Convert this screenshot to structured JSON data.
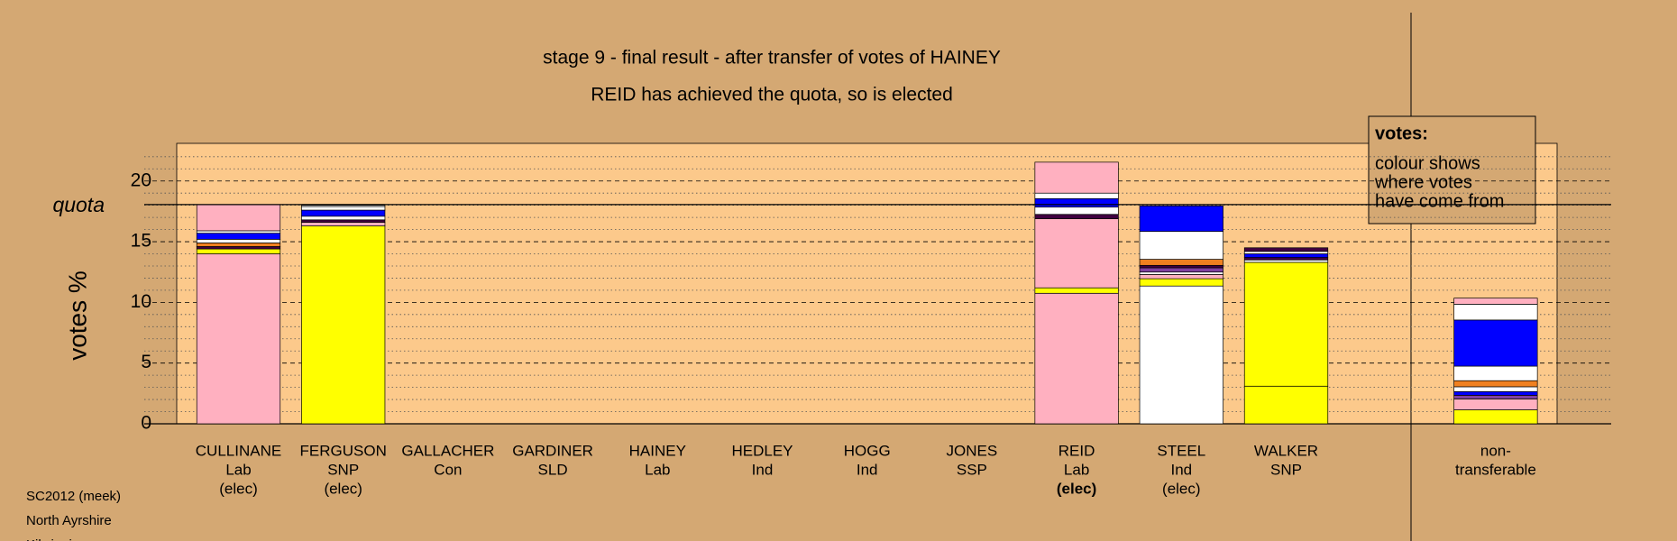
{
  "chart_data": {
    "type": "stacked_bar",
    "title": "stage 9 - final result - after transfer of votes of HAINEY",
    "subtitle": "REID has achieved the quota, so is elected",
    "y_label": "votes %",
    "quota_label": "quota",
    "quota": 18.06,
    "ylim": [
      0,
      23.1
    ],
    "yticks": [
      0,
      5,
      10,
      15,
      20
    ],
    "minor_yticks": [
      1,
      2,
      3,
      4,
      6,
      7,
      8,
      9,
      11,
      12,
      13,
      14,
      16,
      17,
      18,
      19,
      21,
      22
    ],
    "grid": true,
    "bold_status_index": 8,
    "categories": [
      [
        "CULLINANE",
        "Lab",
        "(elec)"
      ],
      [
        "FERGUSON",
        "SNP",
        "(elec)"
      ],
      [
        "GALLACHER",
        "Con"
      ],
      [
        "GARDINER",
        "SLD"
      ],
      [
        "HAINEY",
        "Lab"
      ],
      [
        "HEDLEY",
        "Ind"
      ],
      [
        "HOGG",
        "Ind"
      ],
      [
        "JONES",
        "SSP"
      ],
      [
        "REID",
        "Lab",
        "(elec)"
      ],
      [
        "STEEL",
        "Ind",
        "(elec)"
      ],
      [
        "WALKER",
        "SNP"
      ]
    ],
    "stacks": [
      [
        {
          "color": "#ffb0c0",
          "value": 14.0
        },
        {
          "color": "#ffff00",
          "value": 0.4
        },
        {
          "color": "#400040",
          "value": 0.2
        },
        {
          "color": "#f08020",
          "value": 0.3
        },
        {
          "color": "#ffffff",
          "value": 0.3
        },
        {
          "color": "#0000ff",
          "value": 0.5
        },
        {
          "color": "#ffffff",
          "value": 0.2
        },
        {
          "color": "#ffb0c0",
          "value": 2.16
        }
      ],
      [
        {
          "color": "#ffff00",
          "value": 16.3
        },
        {
          "color": "#ffb0c0",
          "value": 0.3
        },
        {
          "color": "#400040",
          "value": 0.2
        },
        {
          "color": "#ffffff",
          "value": 0.3
        },
        {
          "color": "#0000ff",
          "value": 0.5
        },
        {
          "color": "#ffffff",
          "value": 0.3
        },
        {
          "color": "#ffffff",
          "value": 0.1
        }
      ],
      [
        {
          "color": "#ffff00",
          "value": 0
        }
      ],
      [
        {
          "color": "#ffff00",
          "value": 0
        }
      ],
      [
        {
          "color": "#ffb0c0",
          "value": 0
        }
      ],
      [
        {
          "color": "#ffffff",
          "value": 0
        }
      ],
      [
        {
          "color": "#ffffff",
          "value": 0
        }
      ],
      [
        {
          "color": "#f08020",
          "value": 0
        }
      ],
      [
        {
          "color": "#ffb0c0",
          "value": 10.75
        },
        {
          "color": "#ffff00",
          "value": 0.45
        },
        {
          "color": "#ffb0c0",
          "value": 5.7
        },
        {
          "color": "#400040",
          "value": 0.35
        },
        {
          "color": "#ffffff",
          "value": 0.6
        },
        {
          "color": "#0000ff",
          "value": 0.7
        },
        {
          "color": "#ffffff",
          "value": 0.45
        },
        {
          "color": "#ffb0c0",
          "value": 2.55
        }
      ],
      [
        {
          "color": "#ffffff",
          "value": 11.35
        },
        {
          "color": "#ffff00",
          "value": 0.6
        },
        {
          "color": "#ffb0c0",
          "value": 0.35
        },
        {
          "color": "#ffffff",
          "value": 0.2
        },
        {
          "color": "#8040a0",
          "value": 0.35
        },
        {
          "color": "#400040",
          "value": 0.2
        },
        {
          "color": "#f08020",
          "value": 0.5
        },
        {
          "color": "#ffffff",
          "value": 2.3
        },
        {
          "color": "#0000ff",
          "value": 2.1
        }
      ],
      [
        {
          "color": "#ffff00",
          "value": 3.1
        },
        {
          "color": "#ffff00",
          "value": 10.2
        },
        {
          "color": "#ffffff",
          "value": 0.2
        },
        {
          "color": "#400040",
          "value": 0.2
        },
        {
          "color": "#0000ff",
          "value": 0.3
        },
        {
          "color": "#ffffff",
          "value": 0.2
        },
        {
          "color": "#400040",
          "value": 0.3
        }
      ]
    ],
    "nontransferable": {
      "label": [
        "non-",
        "transferable"
      ],
      "stack": [
        {
          "color": "#ffff00",
          "value": 1.15
        },
        {
          "color": "#ffb0c0",
          "value": 0.9
        },
        {
          "color": "#8040a0",
          "value": 0.3
        },
        {
          "color": "#0000ff",
          "value": 0.3
        },
        {
          "color": "#ffffff",
          "value": 0.4
        },
        {
          "color": "#f08020",
          "value": 0.5
        },
        {
          "color": "#ffffff",
          "value": 1.2
        },
        {
          "color": "#0000ff",
          "value": 3.8
        },
        {
          "color": "#ffffff",
          "value": 1.3
        },
        {
          "color": "#ffb0c0",
          "value": 0.5
        }
      ]
    },
    "legend": {
      "heading": "votes:",
      "lines": [
        "colour shows",
        "where votes",
        "have come from"
      ]
    },
    "footer": [
      "SC2012 (meek)",
      "North Ayrshire",
      "Kilwinning"
    ]
  }
}
